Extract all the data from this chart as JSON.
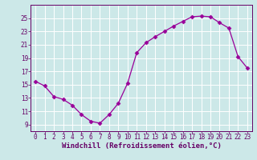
{
  "x": [
    0,
    1,
    2,
    3,
    4,
    5,
    6,
    7,
    8,
    9,
    10,
    11,
    12,
    13,
    14,
    15,
    16,
    17,
    18,
    19,
    20,
    21,
    22,
    23
  ],
  "y": [
    15.5,
    14.8,
    13.2,
    12.8,
    11.9,
    10.5,
    9.5,
    9.2,
    10.5,
    12.2,
    15.2,
    19.8,
    21.3,
    22.2,
    23.0,
    23.8,
    24.5,
    25.2,
    25.3,
    25.2,
    24.3,
    23.5,
    19.2,
    17.5
  ],
  "line_color": "#990099",
  "marker": "D",
  "markersize": 2.5,
  "linewidth": 0.9,
  "xlabel": "Windchill (Refroidissement éolien,°C)",
  "xlabel_fontsize": 6.5,
  "bg_color": "#cce8e8",
  "plot_bg_color": "#cce8e8",
  "grid_color": "#ffffff",
  "axis_color": "#660066",
  "tick_color": "#660066",
  "ylim": [
    8,
    27
  ],
  "xlim": [
    -0.5,
    23.5
  ],
  "yticks": [
    9,
    11,
    13,
    15,
    17,
    19,
    21,
    23,
    25
  ],
  "xticks": [
    0,
    1,
    2,
    3,
    4,
    5,
    6,
    7,
    8,
    9,
    10,
    11,
    12,
    13,
    14,
    15,
    16,
    17,
    18,
    19,
    20,
    21,
    22,
    23
  ],
  "tick_fontsize": 5.5
}
